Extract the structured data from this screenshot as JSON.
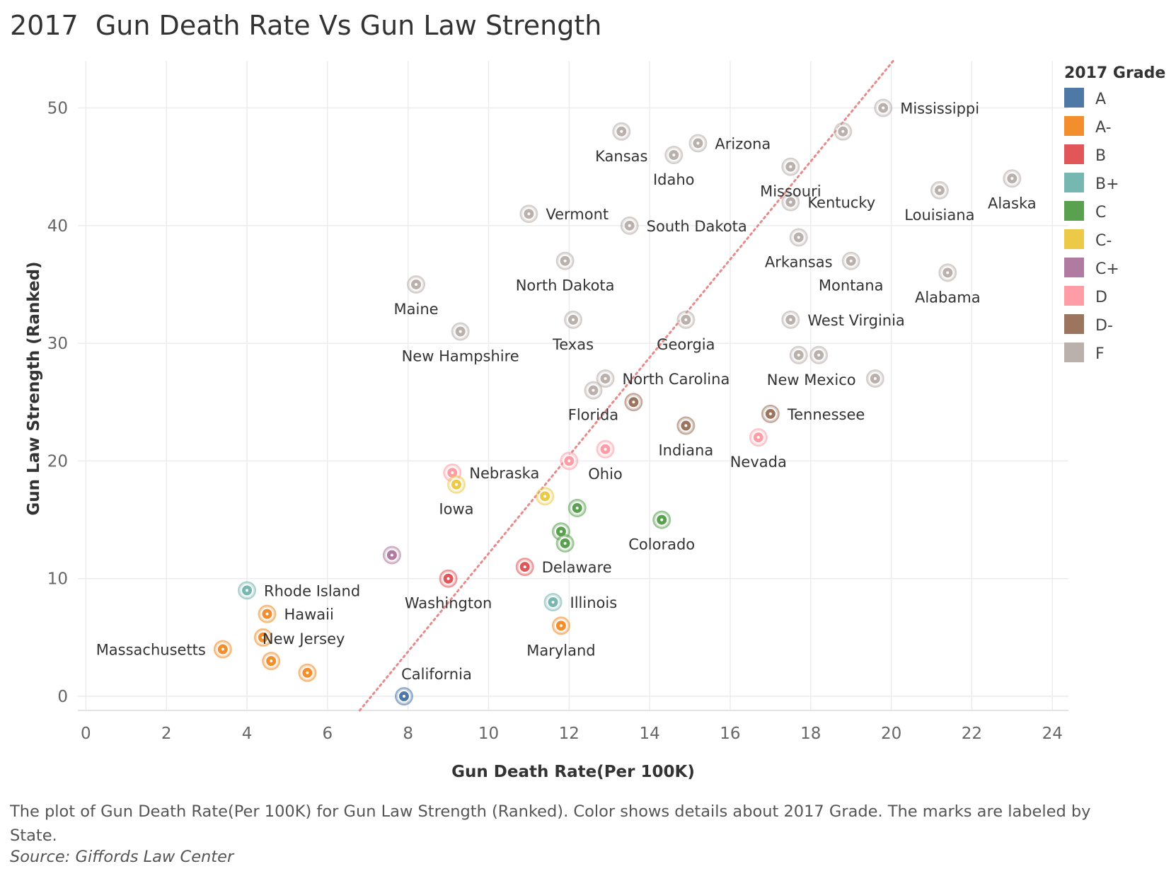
{
  "title": "2017  Gun Death Rate Vs Gun Law Strength",
  "caption": "The plot of Gun Death Rate(Per 100K) for Gun Law Strength (Ranked).  Color shows details about 2017 Grade.  The marks are labeled by State.",
  "source": "Source: Giffords Law Center",
  "chart_data": {
    "type": "scatter",
    "xlabel": "Gun Death Rate(Per 100K)",
    "ylabel": "Gun Law Strength (Ranked)",
    "xlim": [
      -0.2,
      24.4
    ],
    "ylim": [
      -1.2,
      54
    ],
    "x_ticks": [
      0,
      2,
      4,
      6,
      8,
      10,
      12,
      14,
      16,
      18,
      20,
      22,
      24
    ],
    "y_ticks": [
      0,
      10,
      20,
      30,
      40,
      50
    ],
    "grid": true,
    "legend": {
      "title": "2017 Grade",
      "placement": "right",
      "entries": [
        {
          "grade": "A",
          "color": "#4e79a7"
        },
        {
          "grade": "A-",
          "color": "#f28e2b"
        },
        {
          "grade": "B",
          "color": "#e15759"
        },
        {
          "grade": "B+",
          "color": "#76b7b2"
        },
        {
          "grade": "C",
          "color": "#59a14f"
        },
        {
          "grade": "C-",
          "color": "#edc948"
        },
        {
          "grade": "C+",
          "color": "#b07aa1"
        },
        {
          "grade": "D",
          "color": "#ff9da7"
        },
        {
          "grade": "D-",
          "color": "#9c755f"
        },
        {
          "grade": "F",
          "color": "#bab0ac"
        }
      ]
    },
    "trend_line": {
      "from": [
        6.8,
        -1.2
      ],
      "to": [
        20.05,
        54
      ],
      "color": "#e8898a",
      "style": "dotted"
    },
    "points": [
      {
        "x": 19.8,
        "y": 50,
        "grade": "F",
        "label": "Mississippi"
      },
      {
        "x": 18.8,
        "y": 48,
        "grade": "F",
        "label": ""
      },
      {
        "x": 13.3,
        "y": 48,
        "grade": "F",
        "label": "Kansas"
      },
      {
        "x": 15.2,
        "y": 47,
        "grade": "F",
        "label": "Arizona"
      },
      {
        "x": 14.6,
        "y": 46,
        "grade": "F",
        "label": "Idaho"
      },
      {
        "x": 17.5,
        "y": 45,
        "grade": "F",
        "label": "Missouri"
      },
      {
        "x": 23.0,
        "y": 44,
        "grade": "F",
        "label": "Alaska"
      },
      {
        "x": 21.2,
        "y": 43,
        "grade": "F",
        "label": "Louisiana"
      },
      {
        "x": 17.5,
        "y": 42,
        "grade": "F",
        "label": "Kentucky"
      },
      {
        "x": 11.0,
        "y": 41,
        "grade": "F",
        "label": "Vermont"
      },
      {
        "x": 13.5,
        "y": 40,
        "grade": "F",
        "label": "South Dakota"
      },
      {
        "x": 17.7,
        "y": 39,
        "grade": "F",
        "label": "Arkansas"
      },
      {
        "x": 11.9,
        "y": 37,
        "grade": "F",
        "label": "North Dakota"
      },
      {
        "x": 19.0,
        "y": 37,
        "grade": "F",
        "label": "Montana"
      },
      {
        "x": 21.4,
        "y": 36,
        "grade": "F",
        "label": "Alabama"
      },
      {
        "x": 8.2,
        "y": 35,
        "grade": "F",
        "label": "Maine"
      },
      {
        "x": 12.1,
        "y": 32,
        "grade": "F",
        "label": "Texas"
      },
      {
        "x": 14.9,
        "y": 32,
        "grade": "F",
        "label": "Georgia"
      },
      {
        "x": 17.5,
        "y": 32,
        "grade": "F",
        "label": "West Virginia"
      },
      {
        "x": 9.3,
        "y": 31,
        "grade": "F",
        "label": "New Hampshire"
      },
      {
        "x": 17.7,
        "y": 29,
        "grade": "F",
        "label": "New Mexico"
      },
      {
        "x": 18.2,
        "y": 29,
        "grade": "F",
        "label": ""
      },
      {
        "x": 12.9,
        "y": 27,
        "grade": "F",
        "label": "North Carolina"
      },
      {
        "x": 19.6,
        "y": 27,
        "grade": "F",
        "label": ""
      },
      {
        "x": 12.6,
        "y": 26,
        "grade": "F",
        "label": "Florida"
      },
      {
        "x": 13.6,
        "y": 25,
        "grade": "D-",
        "label": ""
      },
      {
        "x": 17.0,
        "y": 24,
        "grade": "D-",
        "label": "Tennessee"
      },
      {
        "x": 14.9,
        "y": 23,
        "grade": "D-",
        "label": "Indiana"
      },
      {
        "x": 16.7,
        "y": 22,
        "grade": "D",
        "label": "Nevada"
      },
      {
        "x": 12.9,
        "y": 21,
        "grade": "D",
        "label": "Ohio"
      },
      {
        "x": 12.0,
        "y": 20,
        "grade": "D",
        "label": ""
      },
      {
        "x": 9.1,
        "y": 19,
        "grade": "D",
        "label": "Nebraska"
      },
      {
        "x": 9.2,
        "y": 18,
        "grade": "C-",
        "label": "Iowa"
      },
      {
        "x": 11.4,
        "y": 17,
        "grade": "C-",
        "label": ""
      },
      {
        "x": 12.2,
        "y": 16,
        "grade": "C",
        "label": ""
      },
      {
        "x": 14.3,
        "y": 15,
        "grade": "C",
        "label": "Colorado"
      },
      {
        "x": 11.8,
        "y": 14,
        "grade": "C",
        "label": ""
      },
      {
        "x": 11.9,
        "y": 13,
        "grade": "C",
        "label": ""
      },
      {
        "x": 7.6,
        "y": 12,
        "grade": "C+",
        "label": ""
      },
      {
        "x": 10.9,
        "y": 11,
        "grade": "B",
        "label": "Delaware"
      },
      {
        "x": 9.0,
        "y": 10,
        "grade": "B",
        "label": "Washington"
      },
      {
        "x": 4.0,
        "y": 9,
        "grade": "B+",
        "label": "Rhode Island"
      },
      {
        "x": 11.6,
        "y": 8,
        "grade": "B+",
        "label": "Illinois"
      },
      {
        "x": 4.5,
        "y": 7,
        "grade": "A-",
        "label": "Hawaii"
      },
      {
        "x": 11.8,
        "y": 6,
        "grade": "A-",
        "label": "Maryland"
      },
      {
        "x": 4.4,
        "y": 5,
        "grade": "A-",
        "label": ""
      },
      {
        "x": 3.4,
        "y": 4,
        "grade": "A-",
        "label": "Massachusetts"
      },
      {
        "x": 4.6,
        "y": 3,
        "grade": "A-",
        "label": "New Jersey"
      },
      {
        "x": 5.5,
        "y": 2,
        "grade": "A-",
        "label": ""
      },
      {
        "x": 7.9,
        "y": 0,
        "grade": "A",
        "label": "California"
      }
    ]
  }
}
